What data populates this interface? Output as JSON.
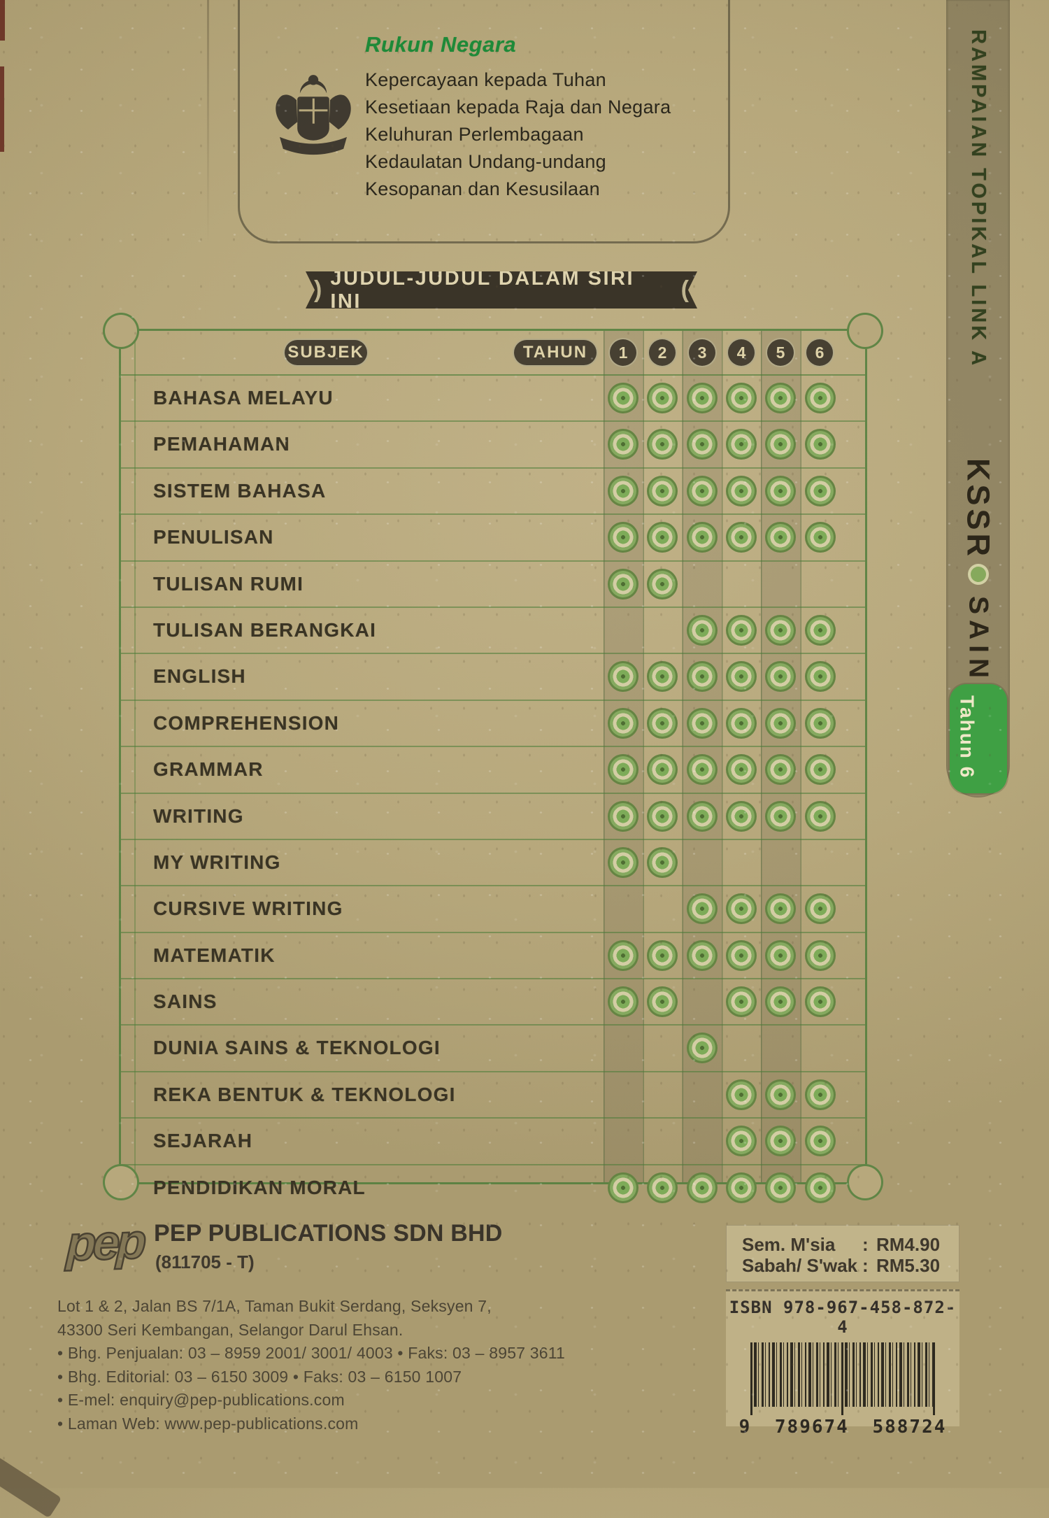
{
  "rukun_negara": {
    "title": "Rukun Negara",
    "principles": [
      "Kepercayaan kepada Tuhan",
      "Kesetiaan kepada Raja dan Negara",
      "Keluhuran Perlembagaan",
      "Kedaulatan Undang-undang",
      "Kesopanan dan Kesusilaan"
    ]
  },
  "series_banner": {
    "label": "JUDUL-JUDUL DALAM SIRI INI"
  },
  "series_table": {
    "subject_header": "SUBJEK",
    "year_header": "TAHUN",
    "years": [
      "1",
      "2",
      "3",
      "4",
      "5",
      "6"
    ],
    "rows": [
      {
        "label": "BAHASA MELAYU",
        "years": [
          true,
          true,
          true,
          true,
          true,
          true
        ]
      },
      {
        "label": "PEMAHAMAN",
        "years": [
          true,
          true,
          true,
          true,
          true,
          true
        ]
      },
      {
        "label": "SISTEM BAHASA",
        "years": [
          true,
          true,
          true,
          true,
          true,
          true
        ]
      },
      {
        "label": "PENULISAN",
        "years": [
          true,
          true,
          true,
          true,
          true,
          true
        ]
      },
      {
        "label": "TULISAN RUMI",
        "years": [
          true,
          true,
          false,
          false,
          false,
          false
        ]
      },
      {
        "label": "TULISAN BERANGKAI",
        "years": [
          false,
          false,
          true,
          true,
          true,
          true
        ]
      },
      {
        "label": "ENGLISH",
        "years": [
          true,
          true,
          true,
          true,
          true,
          true
        ]
      },
      {
        "label": "COMPREHENSION",
        "years": [
          true,
          true,
          true,
          true,
          true,
          true
        ]
      },
      {
        "label": "GRAMMAR",
        "years": [
          true,
          true,
          true,
          true,
          true,
          true
        ]
      },
      {
        "label": "WRITING",
        "years": [
          true,
          true,
          true,
          true,
          true,
          true
        ]
      },
      {
        "label": "MY WRITING",
        "years": [
          true,
          true,
          false,
          false,
          false,
          false
        ]
      },
      {
        "label": "CURSIVE WRITING",
        "years": [
          false,
          false,
          true,
          true,
          true,
          true
        ]
      },
      {
        "label": "MATEMATIK",
        "years": [
          true,
          true,
          true,
          true,
          true,
          true
        ]
      },
      {
        "label": "SAINS",
        "years": [
          true,
          true,
          false,
          true,
          true,
          true
        ]
      },
      {
        "label": "DUNIA SAINS & TEKNOLOGI",
        "years": [
          false,
          false,
          true,
          false,
          false,
          false
        ]
      },
      {
        "label": "REKA BENTUK & TEKNOLOGI",
        "years": [
          false,
          false,
          false,
          true,
          true,
          true
        ]
      },
      {
        "label": "SEJARAH",
        "years": [
          false,
          false,
          false,
          true,
          true,
          true
        ]
      },
      {
        "label": "PENDIDIKAN MORAL",
        "years": [
          true,
          true,
          true,
          true,
          true,
          true
        ]
      }
    ]
  },
  "spine": {
    "series": "RAMPAIAN TOPIKAL LINK A",
    "curriculum": "KSSR",
    "subject": "SAINS",
    "year_badge": "Tahun 6"
  },
  "publisher": {
    "logo": "pep",
    "name": "PEP PUBLICATIONS SDN BHD",
    "registration": "(811705 - T)",
    "contact_lines": [
      "Lot 1 & 2, Jalan BS 7/1A, Taman Bukit Serdang, Seksyen 7,",
      "43300 Seri Kembangan, Selangor Darul Ehsan.",
      "• Bhg. Penjualan: 03 – 8959 2001/ 3001/ 4003  • Faks: 03 – 8957 3611",
      "• Bhg. Editorial: 03 – 6150 3009  • Faks: 03 – 6150 1007",
      "• E-mel: enquiry@pep-publications.com",
      "• Laman Web: www.pep-publications.com"
    ]
  },
  "pricing": {
    "separator": ":",
    "rows": [
      {
        "region": "Sem. M'sia",
        "price": "RM4.90"
      },
      {
        "region": "Sabah/ S'wak",
        "price": "RM5.30"
      }
    ]
  },
  "isbn": {
    "label": "ISBN 978-967-458-872-4",
    "digits": "9 789674 588724"
  },
  "colors": {
    "paper": "#b7a87c",
    "line_green": "#4a7c38",
    "dark_ink": "#3a3428",
    "cream": "#ded3ae",
    "badge_green": "#3fa044"
  }
}
